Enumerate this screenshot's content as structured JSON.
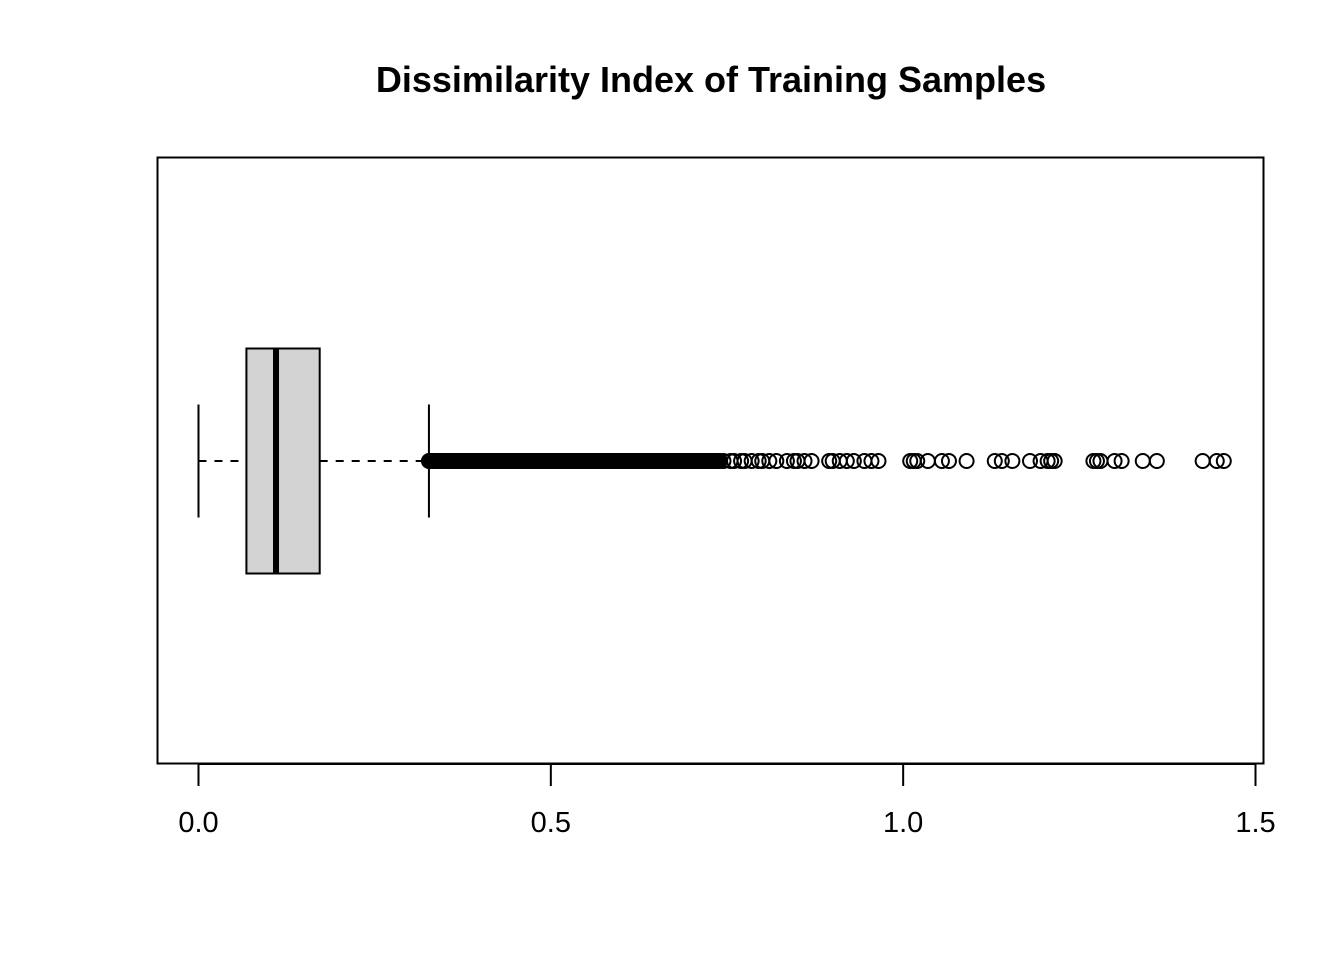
{
  "chart_data": {
    "type": "boxplot",
    "orientation": "horizontal",
    "title": "Dissimilarity Index of Training Samples",
    "xlabel": "",
    "ylabel": "",
    "xlim": [
      0.0,
      1.5
    ],
    "x_ticks": [
      0.0,
      0.5,
      1.0,
      1.5
    ],
    "x_tick_labels": [
      "0.0",
      "0.5",
      "1.0",
      "1.5"
    ],
    "box_fill": "#d3d3d3",
    "box": {
      "whisker_low": 0.0,
      "q1": 0.068,
      "median": 0.11,
      "q3": 0.172,
      "whisker_high": 0.327
    },
    "outlier_dense_range": [
      0.327,
      0.74
    ],
    "outliers": [
      0.745,
      0.755,
      0.76,
      0.77,
      0.775,
      0.785,
      0.795,
      0.8,
      0.81,
      0.82,
      0.835,
      0.845,
      0.85,
      0.86,
      0.87,
      0.895,
      0.9,
      0.91,
      0.92,
      0.93,
      0.945,
      0.955,
      0.965,
      1.01,
      1.015,
      1.02,
      1.035,
      1.055,
      1.065,
      1.09,
      1.13,
      1.14,
      1.155,
      1.18,
      1.195,
      1.205,
      1.21,
      1.215,
      1.27,
      1.275,
      1.28,
      1.3,
      1.31,
      1.34,
      1.36,
      1.425,
      1.445,
      1.455
    ]
  }
}
